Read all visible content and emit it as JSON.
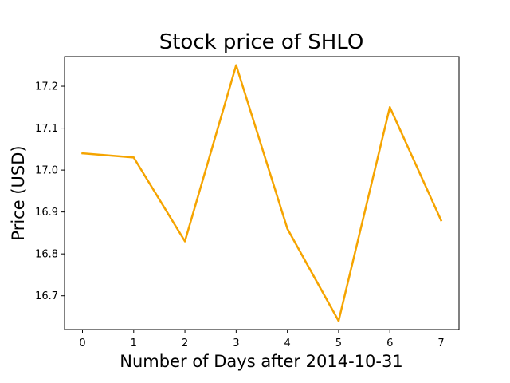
{
  "chart_data": {
    "type": "line",
    "title": "Stock price of SHLO",
    "xlabel": "Number of Days after 2014-10-31",
    "ylabel": "Price (USD)",
    "x": [
      0,
      1,
      2,
      3,
      4,
      5,
      6,
      7
    ],
    "series": [
      {
        "values": [
          17.04,
          17.03,
          16.83,
          17.25,
          16.86,
          16.64,
          17.15,
          16.88
        ],
        "color": "#f5a400"
      }
    ],
    "xlim": [
      -0.35,
      7.35
    ],
    "ylim": [
      16.6195,
      17.2705
    ],
    "xticks": [
      0,
      1,
      2,
      3,
      4,
      5,
      6,
      7
    ],
    "xtick_labels": [
      "0",
      "1",
      "2",
      "3",
      "4",
      "5",
      "6",
      "7"
    ],
    "yticks": [
      16.7,
      16.8,
      16.9,
      17.0,
      17.1,
      17.2
    ],
    "ytick_labels": [
      "16.7",
      "16.8",
      "16.9",
      "17.0",
      "17.1",
      "17.2"
    ],
    "grid": false,
    "legend": false
  }
}
